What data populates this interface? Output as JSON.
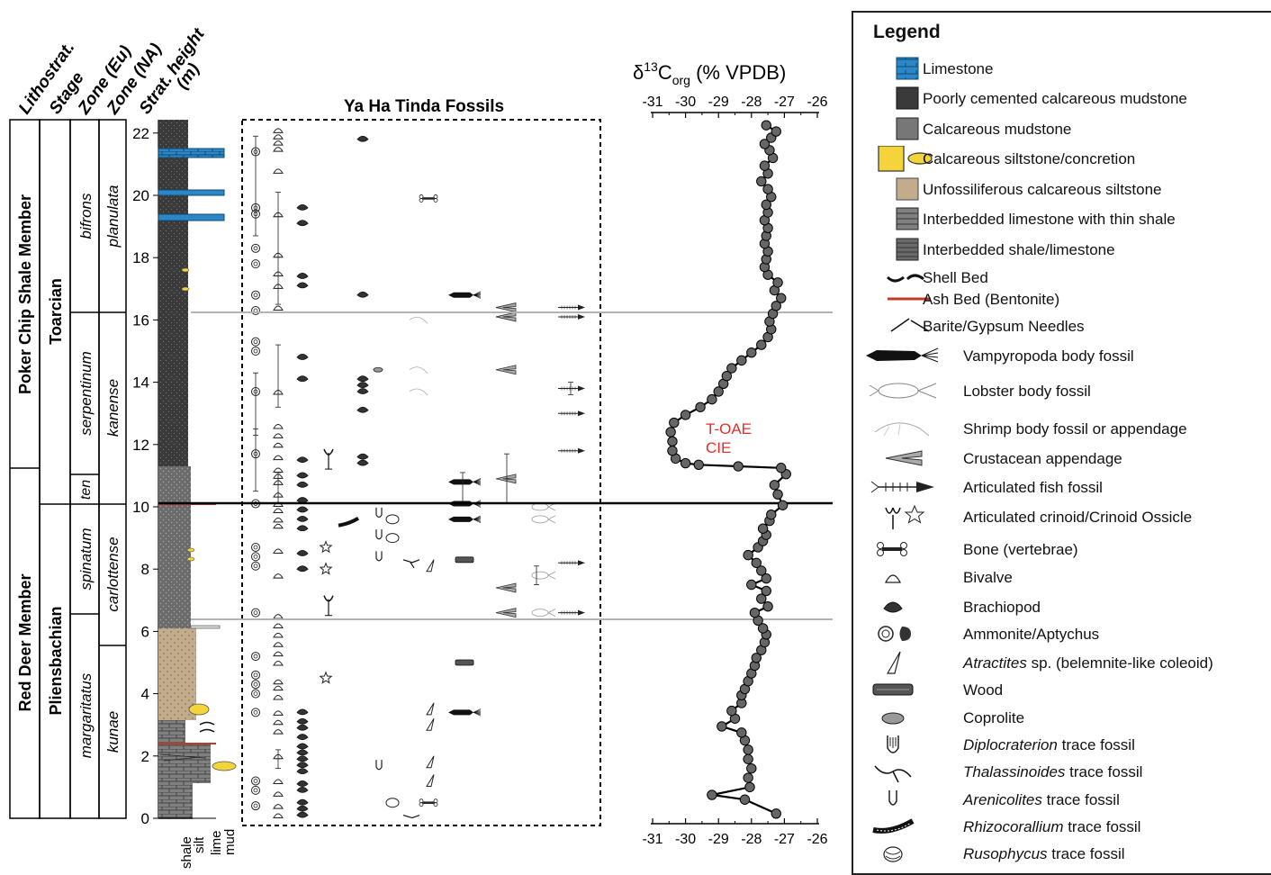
{
  "column_headers": [
    "Lithostrat.",
    "Stage",
    "Zone (Eu)",
    "Zone (NA)",
    "Strat. height",
    "(m)"
  ],
  "members": [
    "Poker Chip Shale Member",
    "Red Deer Member"
  ],
  "stages": [
    "Toarcian",
    "Pliensbachian"
  ],
  "zones_eu": [
    "bifrons",
    "serpentinum",
    "ten",
    "spinatum",
    "margaritatus"
  ],
  "zones_na": [
    "planulata",
    "kanense",
    "carlottense",
    "kunae"
  ],
  "height_ticks": [
    "0",
    "2",
    "4",
    "6",
    "8",
    "10",
    "12",
    "14",
    "16",
    "18",
    "20",
    "22"
  ],
  "grain_labels": [
    "shale",
    "silt",
    "lime",
    "mud"
  ],
  "fossils_title": "Ya Ha Tinda Fossils",
  "isotope": {
    "title_delta": "δ",
    "title_sup": "13",
    "title_C": "C",
    "title_sub": "org",
    "title_unit": " (% VPDB)",
    "ticks": [
      "-31",
      "-30",
      "-29",
      "-28",
      "-27",
      "-26"
    ],
    "annotation": [
      "T-OAE",
      "CIE"
    ],
    "annotation_color": "#e0312c",
    "point_color": "#666666"
  },
  "legend": {
    "title": "Legend",
    "items": [
      {
        "label": "Limestone",
        "icon": "limestone-swatch"
      },
      {
        "label": "Poorly cemented calcareous mudstone",
        "icon": "poor-mudstone-swatch"
      },
      {
        "label": "Calcareous mudstone",
        "icon": "mudstone-swatch"
      },
      {
        "label": "Calcareous siltstone/concretion",
        "icon": "siltstone-concretion-swatch"
      },
      {
        "label": "Unfossiliferous calcareous siltstone",
        "icon": "unfossil-siltstone-swatch"
      },
      {
        "label": "Interbedded limestone with thin shale",
        "icon": "interbedded-limestone-swatch"
      },
      {
        "label": "Interbedded shale/limestone",
        "icon": "interbedded-shale-swatch"
      },
      {
        "label": "Shell Bed",
        "icon": "shell-bed-icon"
      },
      {
        "label": "Ash Bed (Bentonite)",
        "icon": "ash-bed-icon"
      },
      {
        "label": "Barite/Gypsum Needles",
        "icon": "needles-icon"
      },
      {
        "label": "Vampyropoda body fossil",
        "icon": "vampyropoda-icon"
      },
      {
        "label": "Lobster body fossil",
        "icon": "lobster-icon"
      },
      {
        "label": "Shrimp body fossil or appendage",
        "icon": "shrimp-icon"
      },
      {
        "label": "Crustacean appendage",
        "icon": "crustacean-appendage-icon"
      },
      {
        "label": "Articulated fish fossil",
        "icon": "fish-icon"
      },
      {
        "label": "Articulated crinoid/Crinoid Ossicle",
        "icon": "crinoid-icon"
      },
      {
        "label": "Bone (vertebrae)",
        "icon": "bone-icon"
      },
      {
        "label": "Bivalve",
        "icon": "bivalve-icon"
      },
      {
        "label": "Brachiopod",
        "icon": "brachiopod-icon"
      },
      {
        "label": "Ammonite/Aptychus",
        "icon": "ammonite-icon"
      },
      {
        "label_italic": "Atractites",
        "label_rest": " sp. (belemnite-like coleoid)",
        "icon": "atractites-icon"
      },
      {
        "label": "Wood",
        "icon": "wood-icon"
      },
      {
        "label": "Coprolite",
        "icon": "coprolite-icon"
      },
      {
        "label_italic": "Diplocraterion",
        "label_rest": " trace fossil",
        "icon": "diplocraterion-icon"
      },
      {
        "label_italic": "Thalassinoides",
        "label_rest": " trace fossil",
        "icon": "thalassinoides-icon"
      },
      {
        "label_italic": "Arenicolites",
        "label_rest": " trace fossil",
        "icon": "arenicolites-icon"
      },
      {
        "label_italic": "Rhizocorallium",
        "label_rest": " trace fossil",
        "icon": "rhizocorallium-icon"
      },
      {
        "label_italic": "Rusophycus",
        "label_rest": " trace fossil",
        "icon": "rusophycus-icon"
      }
    ]
  },
  "colors": {
    "limestone": "#2b87c8",
    "dark_mudstone": "#3a3a3a",
    "mudstone": "#6b6b6b",
    "siltstone_yellow": "#f5d33a",
    "unfossil_siltstone": "#c2ac8c",
    "interbedded": "#808080",
    "ash": "#c0392b",
    "boundary_grey": "#b3b3b3"
  },
  "isotope_profile": {
    "x_label": "δ13Corg (% VPDB)",
    "y_label": "Strat. height (m)",
    "ylim": [
      0,
      22.5
    ],
    "xlim": [
      -31,
      -26
    ],
    "points": [
      [
        -27.25,
        0.15
      ],
      [
        -28.2,
        0.6
      ],
      [
        -29.2,
        0.75
      ],
      [
        -28.05,
        1.0
      ],
      [
        -28.1,
        1.3
      ],
      [
        -28.0,
        1.6
      ],
      [
        -28.1,
        1.9
      ],
      [
        -28.1,
        2.2
      ],
      [
        -28.2,
        2.5
      ],
      [
        -28.3,
        2.75
      ],
      [
        -28.9,
        2.95
      ],
      [
        -28.5,
        3.2
      ],
      [
        -28.6,
        3.45
      ],
      [
        -28.3,
        3.7
      ],
      [
        -28.3,
        3.95
      ],
      [
        -28.2,
        4.15
      ],
      [
        -28.1,
        4.4
      ],
      [
        -28.0,
        4.65
      ],
      [
        -27.9,
        4.9
      ],
      [
        -27.85,
        5.15
      ],
      [
        -27.7,
        5.4
      ],
      [
        -27.6,
        5.65
      ],
      [
        -27.55,
        5.9
      ],
      [
        -27.65,
        6.1
      ],
      [
        -27.8,
        6.35
      ],
      [
        -27.9,
        6.6
      ],
      [
        -27.5,
        6.8
      ],
      [
        -27.7,
        7.05
      ],
      [
        -27.55,
        7.3
      ],
      [
        -28.0,
        7.5
      ],
      [
        -27.55,
        7.7
      ],
      [
        -27.7,
        7.95
      ],
      [
        -27.85,
        8.2
      ],
      [
        -28.1,
        8.45
      ],
      [
        -27.8,
        8.7
      ],
      [
        -27.65,
        8.9
      ],
      [
        -27.55,
        9.1
      ],
      [
        -27.65,
        9.3
      ],
      [
        -27.45,
        9.55
      ],
      [
        -27.4,
        9.75
      ],
      [
        -27.05,
        10.05
      ],
      [
        -27.2,
        10.4
      ],
      [
        -27.3,
        10.7
      ],
      [
        -26.95,
        11.05
      ],
      [
        -27.1,
        11.25
      ],
      [
        -28.4,
        11.3
      ],
      [
        -29.6,
        11.35
      ],
      [
        -30.0,
        11.4
      ],
      [
        -30.3,
        11.55
      ],
      [
        -30.4,
        11.8
      ],
      [
        -30.4,
        12.1
      ],
      [
        -30.45,
        12.4
      ],
      [
        -30.35,
        12.7
      ],
      [
        -30.0,
        12.95
      ],
      [
        -29.55,
        13.2
      ],
      [
        -29.2,
        13.45
      ],
      [
        -29.0,
        13.7
      ],
      [
        -28.85,
        13.95
      ],
      [
        -28.75,
        14.2
      ],
      [
        -28.6,
        14.45
      ],
      [
        -28.3,
        14.7
      ],
      [
        -28.0,
        14.95
      ],
      [
        -27.7,
        15.2
      ],
      [
        -27.5,
        15.45
      ],
      [
        -27.4,
        15.7
      ],
      [
        -27.45,
        15.95
      ],
      [
        -27.35,
        16.2
      ],
      [
        -27.25,
        16.45
      ],
      [
        -27.1,
        16.7
      ],
      [
        -27.3,
        16.95
      ],
      [
        -27.2,
        17.2
      ],
      [
        -27.5,
        17.45
      ],
      [
        -27.6,
        17.7
      ],
      [
        -27.55,
        17.95
      ],
      [
        -27.5,
        18.2
      ],
      [
        -27.6,
        18.45
      ],
      [
        -27.55,
        18.7
      ],
      [
        -27.5,
        18.95
      ],
      [
        -27.6,
        19.2
      ],
      [
        -27.5,
        19.45
      ],
      [
        -27.55,
        19.7
      ],
      [
        -27.4,
        19.95
      ],
      [
        -27.5,
        20.2
      ],
      [
        -27.7,
        20.45
      ],
      [
        -27.5,
        20.7
      ],
      [
        -27.6,
        20.95
      ],
      [
        -27.35,
        21.2
      ],
      [
        -27.45,
        21.45
      ],
      [
        -27.6,
        21.65
      ],
      [
        -27.4,
        21.85
      ],
      [
        -27.25,
        22.05
      ],
      [
        -27.55,
        22.25
      ]
    ]
  }
}
